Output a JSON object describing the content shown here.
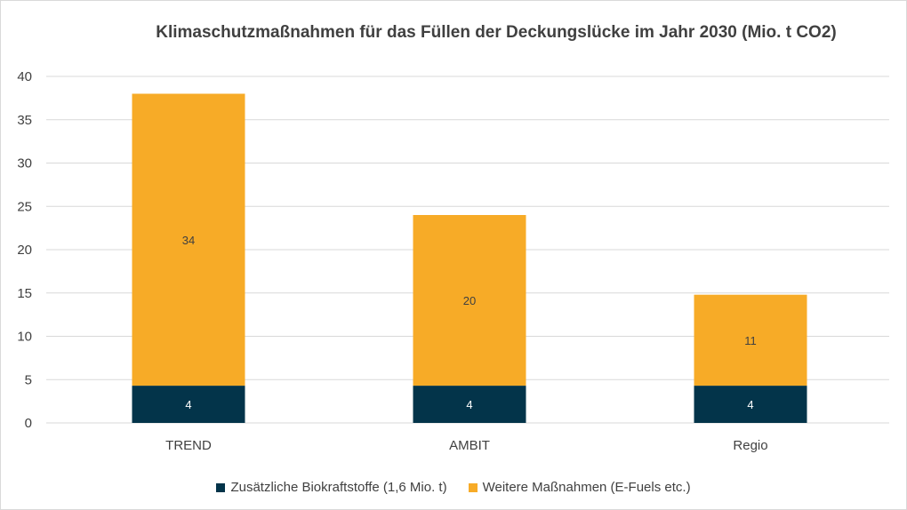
{
  "chart_data": {
    "type": "bar",
    "stacked": true,
    "title": "Klimaschutzmaßnahmen für das Füllen der Deckungslücke im Jahr 2030 (Mio. t CO2)",
    "categories": [
      "TREND",
      "AMBIT",
      "Regio"
    ],
    "series": [
      {
        "name": "Zusätzliche Biokraftstoffe (1,6 Mio. t)",
        "values": [
          4.3,
          4.3,
          4.3
        ],
        "labels": [
          "4",
          "4",
          "4"
        ],
        "color": "#03344a",
        "label_color": "#ffffff"
      },
      {
        "name": "Weitere Maßnahmen (E-Fuels etc.)",
        "values": [
          33.7,
          19.7,
          10.5
        ],
        "labels": [
          "34",
          "20",
          "11"
        ],
        "color": "#f7ab27",
        "label_color": "#404040"
      }
    ],
    "ylim": [
      0,
      40
    ],
    "yticks": [
      0,
      5,
      10,
      15,
      20,
      25,
      30,
      35,
      40
    ],
    "grid": true,
    "legend_position": "bottom"
  }
}
